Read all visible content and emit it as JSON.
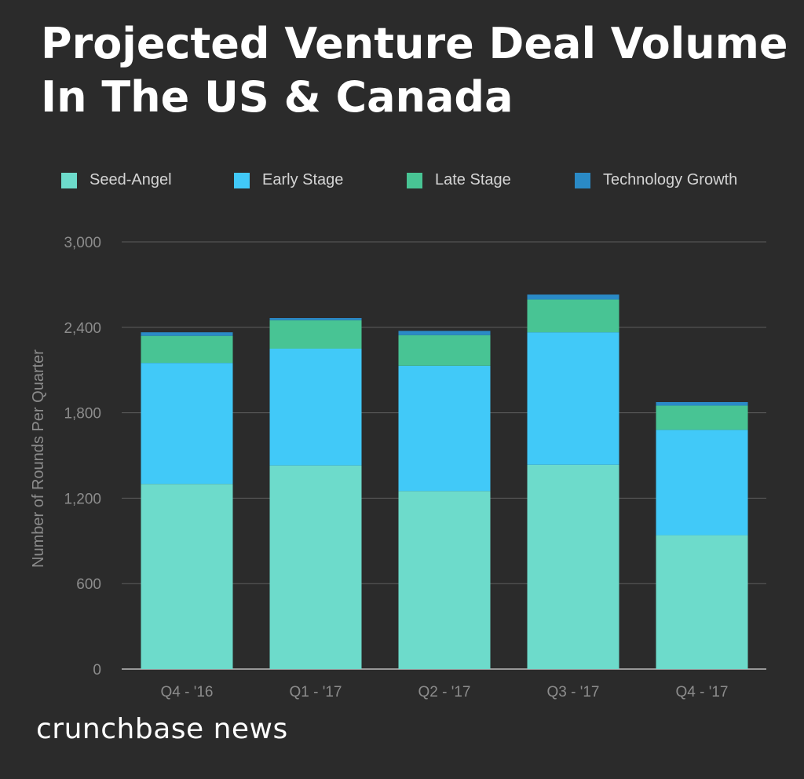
{
  "title_lines": [
    "Projected Venture Deal Volume",
    "In The US & Canada"
  ],
  "brand": "crunchbase news",
  "chart_data": {
    "type": "bar",
    "stacked": true,
    "title": "Projected Venture Deal Volume In The US & Canada",
    "xlabel": "",
    "ylabel": "Number of Rounds Per Quarter",
    "ylim": [
      0,
      3000
    ],
    "yticks": [
      0,
      600,
      1200,
      1800,
      2400,
      3000
    ],
    "ytick_labels": [
      "0",
      "600",
      "1,200",
      "1,800",
      "2,400",
      "3,000"
    ],
    "categories": [
      "Q4 - '16",
      "Q1 - '17",
      "Q2 - '17",
      "Q3 - '17",
      "Q4 - '17"
    ],
    "series": [
      {
        "name": "Seed-Angel",
        "color": "#6ddbcb",
        "values": [
          1300,
          1430,
          1250,
          1435,
          940
        ]
      },
      {
        "name": "Early Stage",
        "color": "#41c9f8",
        "values": [
          850,
          820,
          880,
          930,
          740
        ]
      },
      {
        "name": "Late Stage",
        "color": "#48c494",
        "values": [
          190,
          200,
          215,
          230,
          170
        ]
      },
      {
        "name": "Technology Growth",
        "color": "#2a8ac6",
        "values": [
          25,
          15,
          30,
          35,
          25
        ]
      }
    ],
    "legend_position": "top",
    "grid": true
  }
}
